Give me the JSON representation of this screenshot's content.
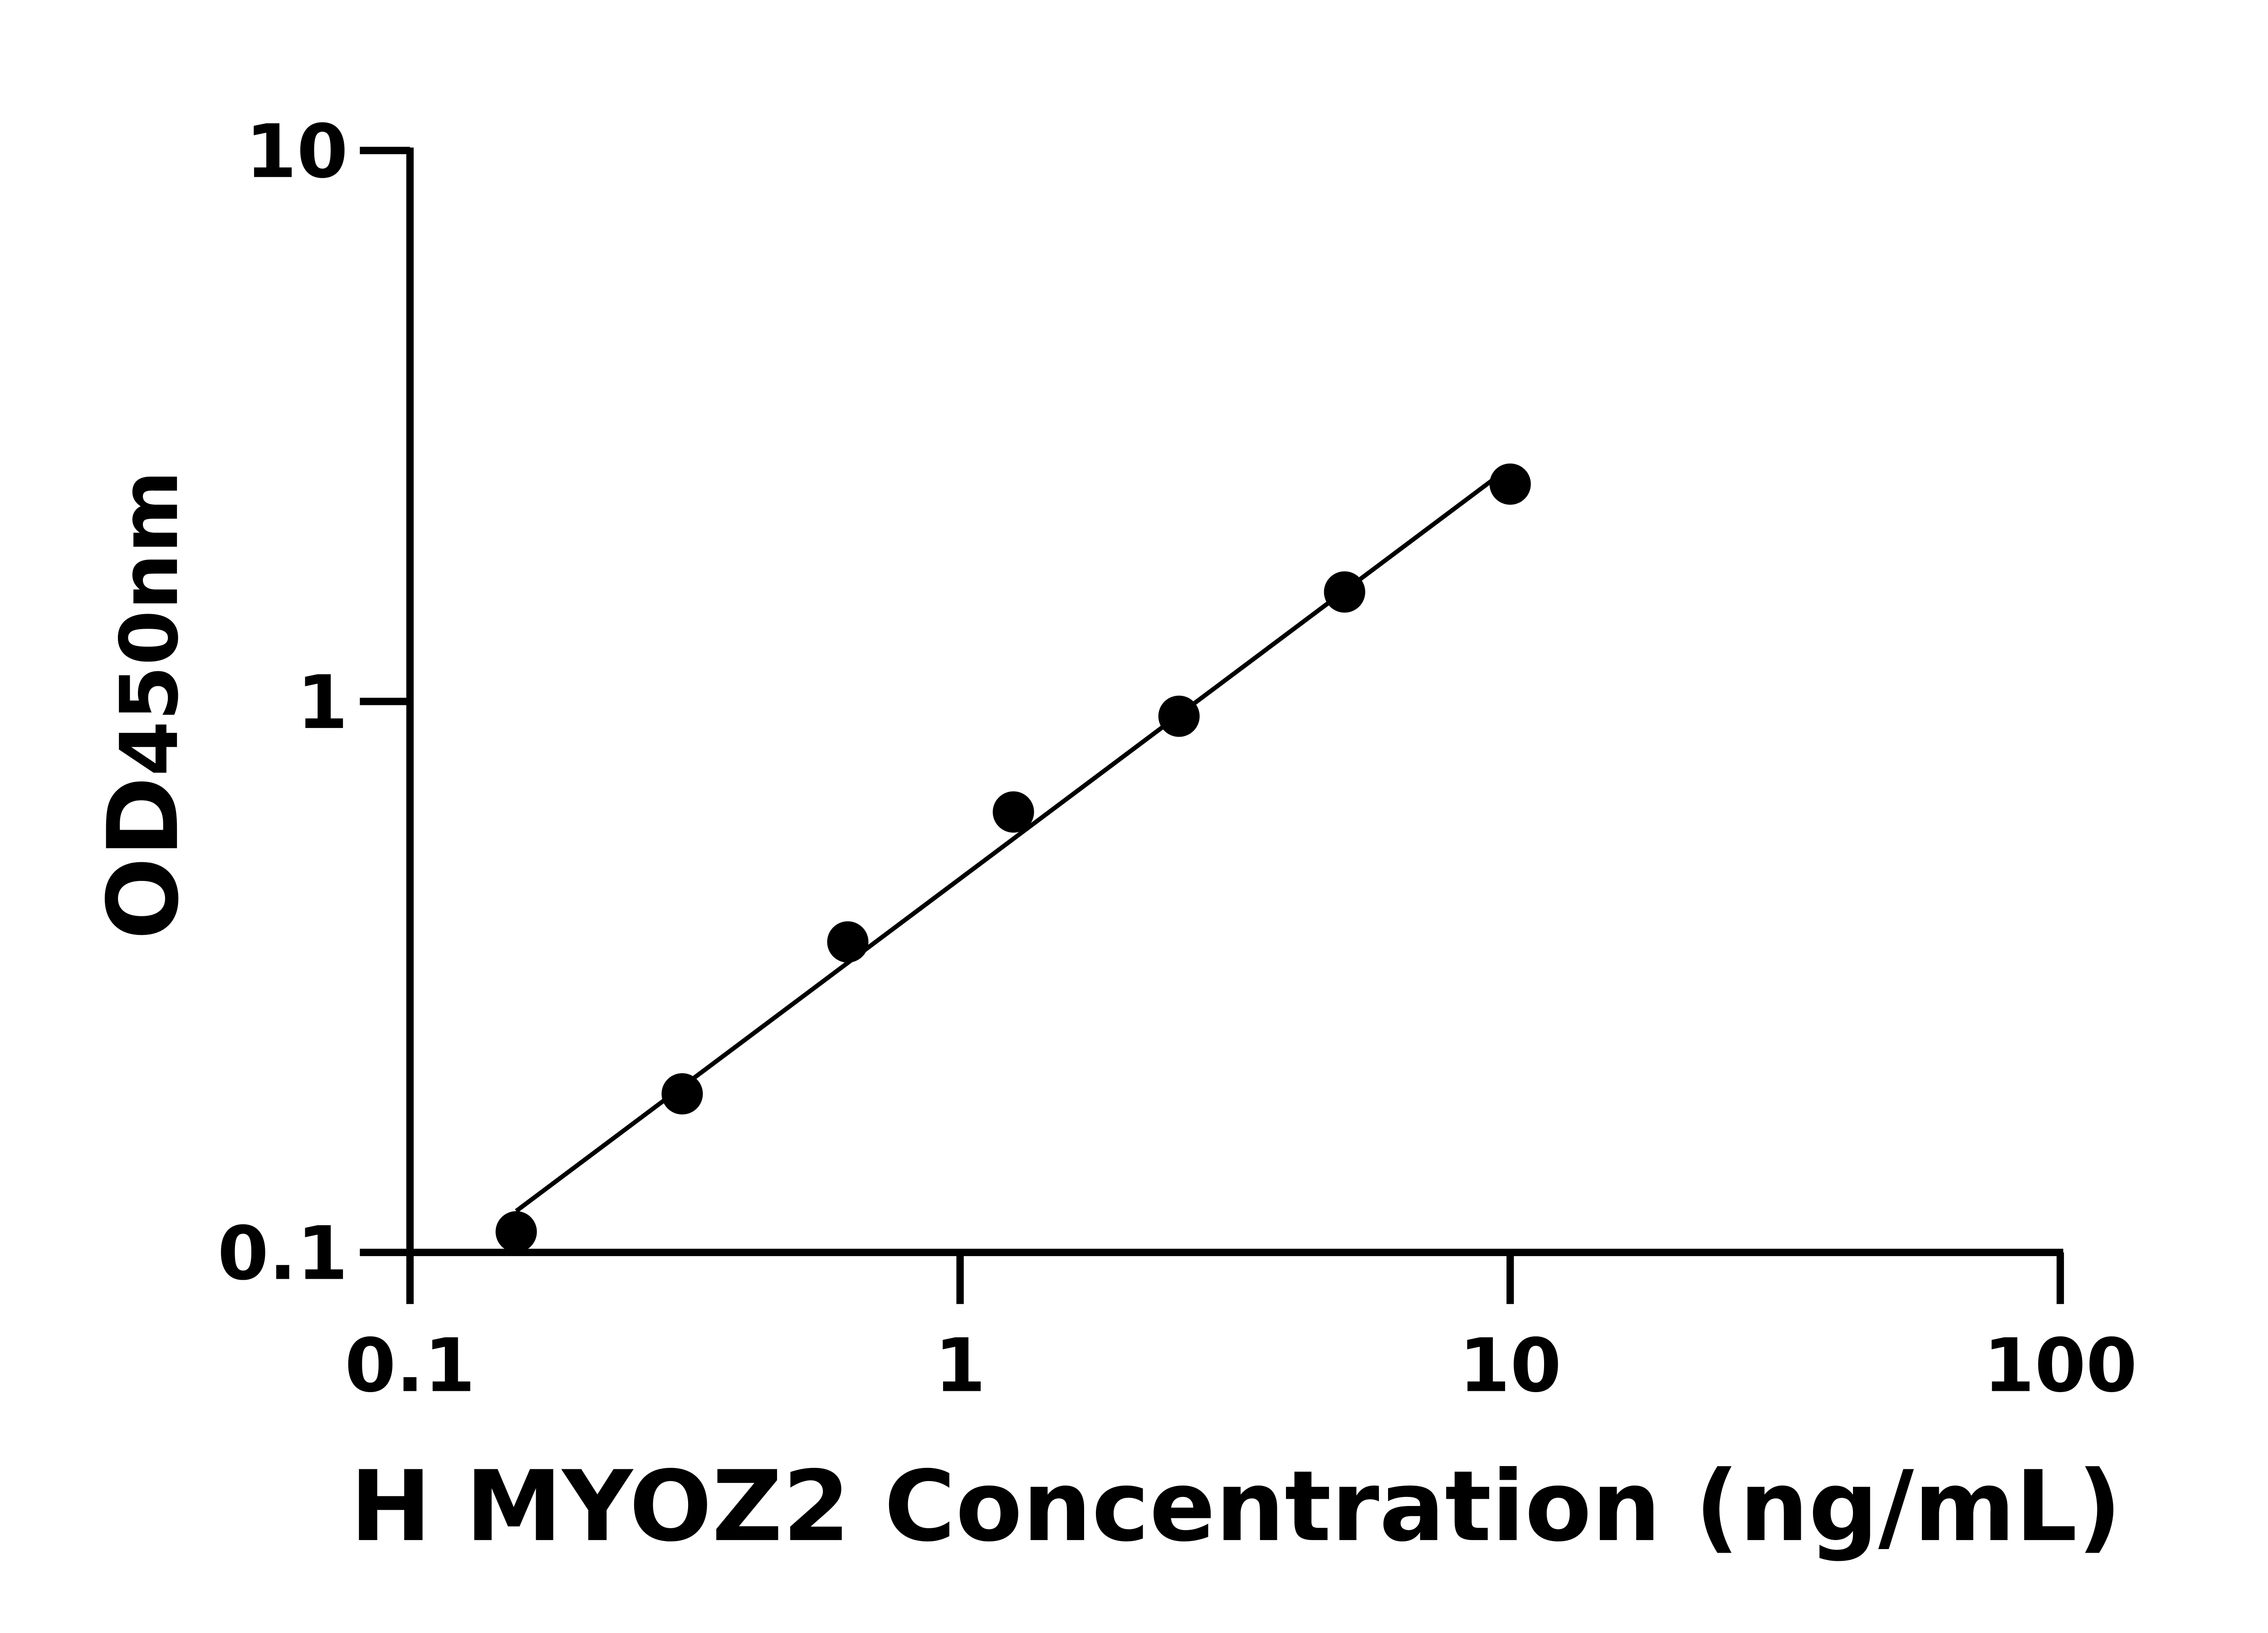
{
  "chart_data": {
    "type": "scatter",
    "title": "",
    "xlabel": "H MYOZ2 Concentration (ng/mL)",
    "ylabel": {
      "main": "OD",
      "sub": "450nm"
    },
    "x_scale": "log",
    "y_scale": "log",
    "xlim": [
      0.1,
      100
    ],
    "ylim": [
      0.1,
      10
    ],
    "x_ticks": [
      "0.1",
      "1",
      "10",
      "100"
    ],
    "y_ticks": [
      "0.1",
      "1",
      "10"
    ],
    "grid": false,
    "fit_line": "linear fit on log-log axes",
    "series": [
      {
        "x": [
          0.156,
          0.3125,
          0.625,
          1.25,
          2.5,
          5,
          10
        ],
        "y": [
          0.109,
          0.194,
          0.366,
          0.63,
          0.94,
          1.58,
          2.48
        ]
      }
    ],
    "colors": {
      "points": "#000000",
      "line": "#000000",
      "axes": "#000000"
    }
  }
}
